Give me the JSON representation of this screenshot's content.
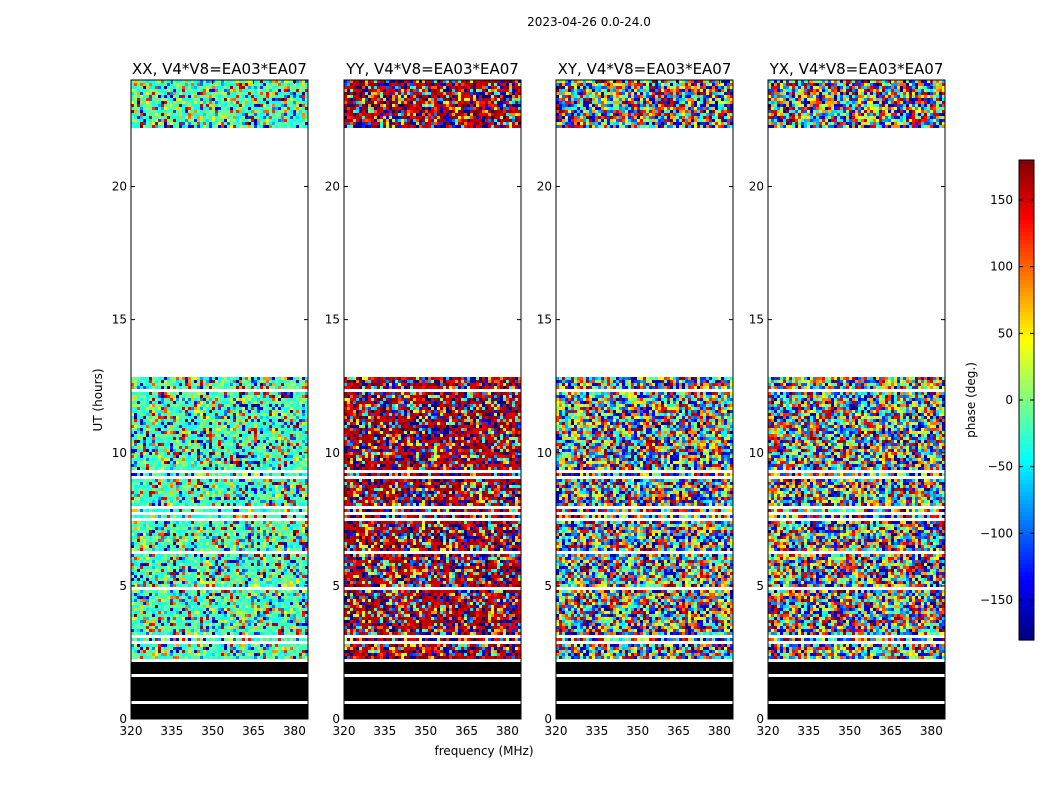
{
  "chart_data": {
    "type": "heatmap",
    "suptitle": "2023-04-26 0.0-24.0",
    "xlabel": "frequency (MHz)",
    "ylabel": "UT (hours)",
    "xlim": [
      320,
      385
    ],
    "ylim": [
      0,
      24
    ],
    "xticks": [
      "320",
      "335",
      "350",
      "365",
      "380"
    ],
    "yticks": [
      "0",
      "5",
      "10",
      "15",
      "20"
    ],
    "panels": [
      {
        "title": "XX, V4*V8=EA03*EA07",
        "pol": "XX",
        "bias_phase": -20
      },
      {
        "title": "YY, V4*V8=EA03*EA07",
        "pol": "YY",
        "bias_phase": 165
      },
      {
        "title": "XY, V4*V8=EA03*EA07",
        "pol": "XY",
        "bias_phase": null
      },
      {
        "title": "YX, V4*V8=EA03*EA07",
        "pol": "YX",
        "bias_phase": null
      }
    ],
    "data_time_ranges_hours": [
      [
        0.0,
        2.1
      ],
      [
        2.2,
        12.8
      ],
      [
        22.2,
        24.0
      ]
    ],
    "flagged_time_range_hours": [
      0.0,
      2.1
    ],
    "colorbar": {
      "label": "phase (deg.)",
      "range": [
        -180,
        180
      ],
      "ticks": [
        "−150",
        "−100",
        "−50",
        "0",
        "50",
        "100",
        "150"
      ],
      "tick_values": [
        -150,
        -100,
        -50,
        0,
        50,
        100,
        150
      ],
      "colormap": "jet"
    }
  }
}
